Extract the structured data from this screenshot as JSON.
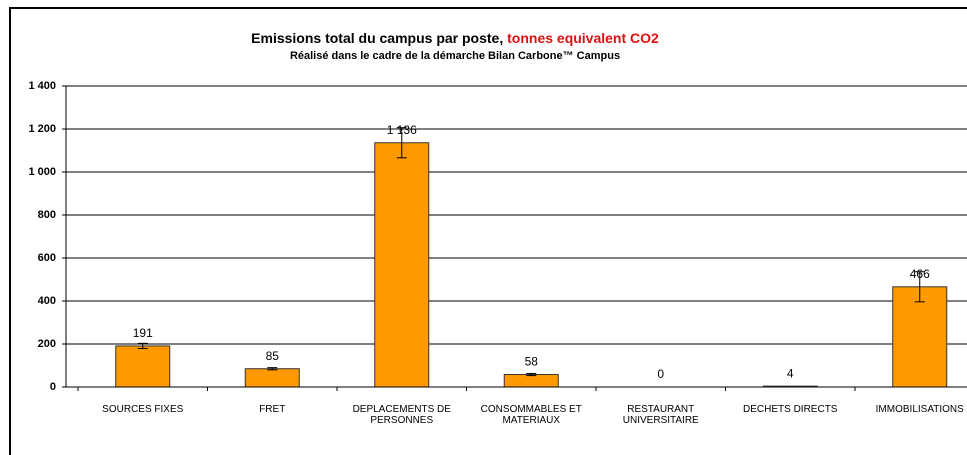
{
  "chart_data": {
    "type": "bar",
    "title": "Emissions total du campus par poste, ",
    "title_highlight": "tonnes equivalent CO2",
    "subtitle": "Réalisé dans le cadre de la démarche Bilan Carbone™ Campus",
    "categories": [
      "SOURCES FIXES",
      "FRET",
      "DEPLACEMENTS DE PERSONNES",
      "CONSOMMABLES ET MATERIAUX",
      "RESTAURANT UNIVERSITAIRE",
      "DECHETS DIRECTS",
      "IMMOBILISATIONS"
    ],
    "values": [
      191,
      85,
      1136,
      58,
      0,
      4,
      466
    ],
    "value_labels": [
      "191",
      "85",
      "1 136",
      "58",
      "0",
      "4",
      "466"
    ],
    "errors": [
      12,
      5,
      70,
      5,
      0,
      0,
      70
    ],
    "color": "#ff9900",
    "ylim": [
      0,
      1400
    ],
    "yticks": [
      0,
      200,
      400,
      600,
      800,
      {
        "value": 1000,
        "label": "1 000"
      },
      {
        "value": 1200,
        "label": "1 200"
      },
      {
        "value": 1400,
        "label": "1 400"
      }
    ],
    "grid": true
  }
}
